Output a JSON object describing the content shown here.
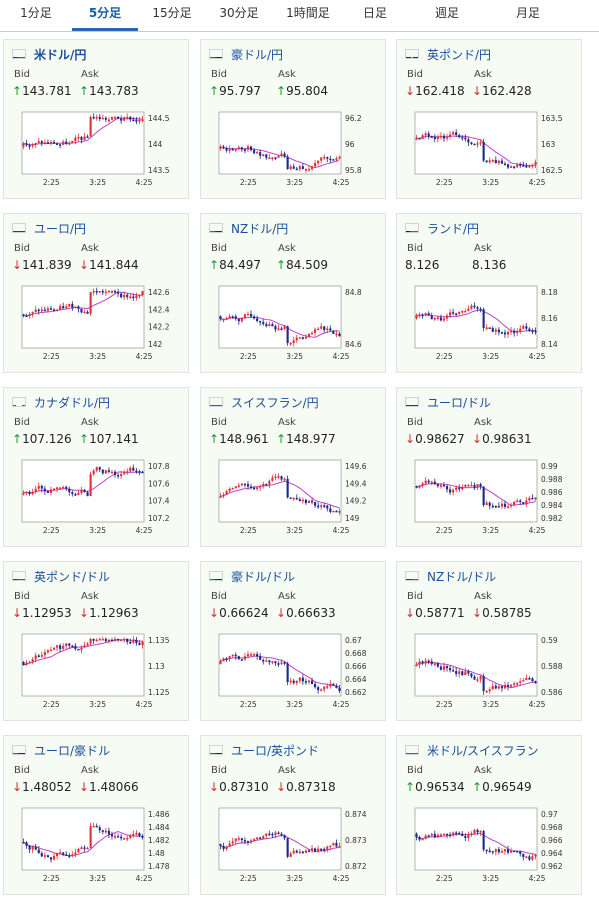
{
  "tabs": [
    "1分足",
    "5分足",
    "15分足",
    "30分足",
    "1時間足",
    "日足",
    "週足",
    "月足"
  ],
  "active_tab": 1,
  "labels": {
    "bid": "Bid",
    "ask": "Ask"
  },
  "cards": [
    {
      "pair": "米ドル/円",
      "bid": "143.781",
      "ask": "143.783",
      "bid_dir": "up",
      "ask_dir": "up",
      "flag": "us",
      "ticks": [
        "144.5",
        "144",
        "143.5"
      ],
      "x": [
        "2:25",
        "3:25",
        "4:25"
      ]
    },
    {
      "pair": "豪ドル/円",
      "bid": "95.797",
      "ask": "95.804",
      "bid_dir": "up",
      "ask_dir": "up",
      "flag": "au",
      "ticks": [
        "96.2",
        "96",
        "95.8"
      ],
      "x": [
        "2:25",
        "3:25",
        "4:25"
      ]
    },
    {
      "pair": "英ポンド/円",
      "bid": "162.418",
      "ask": "162.428",
      "bid_dir": "down",
      "ask_dir": "down",
      "flag": "uk",
      "ticks": [
        "163.5",
        "163",
        "162.5"
      ],
      "x": [
        "2:25",
        "3:25",
        "4:25"
      ]
    },
    {
      "pair": "ユーロ/円",
      "bid": "141.839",
      "ask": "141.844",
      "bid_dir": "down",
      "ask_dir": "down",
      "flag": "eu",
      "ticks": [
        "142.6",
        "142.4",
        "142.2",
        "142"
      ],
      "x": [
        "2:25",
        "3:25",
        "4:25"
      ]
    },
    {
      "pair": "NZドル/円",
      "bid": "84.497",
      "ask": "84.509",
      "bid_dir": "up",
      "ask_dir": "up",
      "flag": "nz",
      "ticks": [
        "84.8",
        "84.6"
      ],
      "x": [
        "2:25",
        "3:25",
        "4:25"
      ]
    },
    {
      "pair": "ランド/円",
      "bid": "8.126",
      "ask": "8.136",
      "bid_dir": "none",
      "ask_dir": "none",
      "flag": "za",
      "ticks": [
        "8.18",
        "8.16",
        "8.14"
      ],
      "x": [
        "2:25",
        "3:25",
        "4:25"
      ]
    },
    {
      "pair": "カナダドル/円",
      "bid": "107.126",
      "ask": "107.141",
      "bid_dir": "up",
      "ask_dir": "up",
      "flag": "ca",
      "ticks": [
        "107.8",
        "107.6",
        "107.4",
        "107.2"
      ],
      "x": [
        "2:25",
        "3:25",
        "4:25"
      ]
    },
    {
      "pair": "スイスフラン/円",
      "bid": "148.961",
      "ask": "148.977",
      "bid_dir": "up",
      "ask_dir": "up",
      "flag": "ch",
      "ticks": [
        "149.6",
        "149.4",
        "149.2",
        "149"
      ],
      "x": [
        "2:25",
        "3:25",
        "4:25"
      ]
    },
    {
      "pair": "ユーロ/ドル",
      "bid": "0.98627",
      "ask": "0.98631",
      "bid_dir": "down",
      "ask_dir": "down",
      "flag": "eu",
      "ticks": [
        "0.99",
        "0.988",
        "0.986",
        "0.984",
        "0.982"
      ],
      "x": [
        "2:25",
        "3:25",
        "4:25"
      ]
    },
    {
      "pair": "英ポンド/ドル",
      "bid": "1.12953",
      "ask": "1.12963",
      "bid_dir": "down",
      "ask_dir": "down",
      "flag": "us",
      "ticks": [
        "1.135",
        "1.13",
        "1.125"
      ],
      "x": [
        "2:25",
        "3:25",
        "4:25"
      ]
    },
    {
      "pair": "豪ドル/ドル",
      "bid": "0.66624",
      "ask": "0.66633",
      "bid_dir": "down",
      "ask_dir": "down",
      "flag": "au",
      "ticks": [
        "0.67",
        "0.668",
        "0.666",
        "0.664",
        "0.662"
      ],
      "x": [
        "2:25",
        "3:25",
        "4:25"
      ]
    },
    {
      "pair": "NZドル/ドル",
      "bid": "0.58771",
      "ask": "0.58785",
      "bid_dir": "down",
      "ask_dir": "down",
      "flag": "us",
      "ticks": [
        "0.59",
        "0.588",
        "0.586"
      ],
      "x": [
        "2:25",
        "3:25",
        "4:25"
      ]
    },
    {
      "pair": "ユーロ/豪ドル",
      "bid": "1.48052",
      "ask": "1.48066",
      "bid_dir": "down",
      "ask_dir": "down",
      "flag": "au",
      "ticks": [
        "1.486",
        "1.484",
        "1.482",
        "1.48",
        "1.478"
      ],
      "x": [
        "2:25",
        "3:25",
        "4:25"
      ]
    },
    {
      "pair": "ユーロ/英ポンド",
      "bid": "0.87310",
      "ask": "0.87318",
      "bid_dir": "down",
      "ask_dir": "down",
      "flag": "au",
      "ticks": [
        "0.874",
        "0.873",
        "0.872"
      ],
      "x": [
        "2:25",
        "3:25",
        "4:25"
      ]
    },
    {
      "pair": "米ドル/スイスフラン",
      "bid": "0.96534",
      "ask": "0.96549",
      "bid_dir": "up",
      "ask_dir": "up",
      "flag": "ch",
      "ticks": [
        "0.97",
        "0.968",
        "0.966",
        "0.964",
        "0.962"
      ],
      "x": [
        "2:25",
        "3:25",
        "4:25"
      ]
    }
  ],
  "colors": {
    "up_candle": "#e0303a",
    "down_candle": "#1c2a8a",
    "ma_line": "#c040c8",
    "aux_line": "#2a9ad0",
    "bid_up": "#1a9a2a",
    "bid_down": "#d42a2a"
  },
  "arrow_icons": {
    "up": "up-arrow-icon",
    "down": "down-arrow-icon"
  }
}
